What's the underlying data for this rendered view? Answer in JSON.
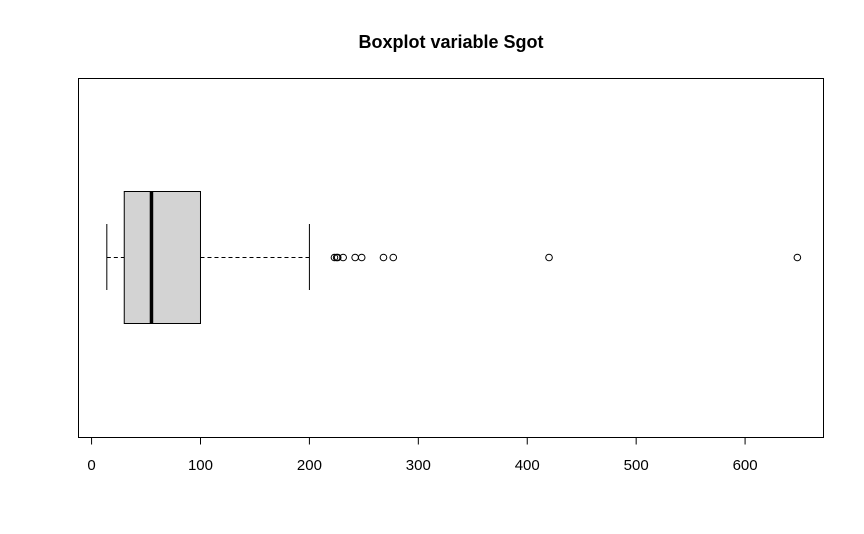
{
  "chart_data": {
    "type": "boxplot",
    "title": "Boxplot variable Sgot",
    "xlabel": "",
    "ylabel": "",
    "orientation": "horizontal",
    "xlim": [
      -12,
      672
    ],
    "x_ticks": [
      0,
      100,
      200,
      300,
      400,
      500,
      600
    ],
    "box": {
      "whisker_low": 14,
      "q1": 30,
      "median": 55,
      "q3": 100,
      "whisker_high": 200
    },
    "outliers": [
      223,
      225,
      226,
      231,
      242,
      248,
      268,
      277,
      420,
      648
    ],
    "box_fill": "#d3d3d3",
    "grid": false,
    "legend": "none"
  }
}
